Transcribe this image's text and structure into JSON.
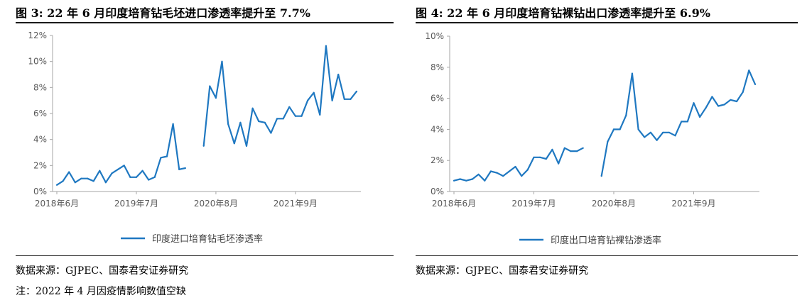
{
  "figures": [
    {
      "title": "图 3:  22 年 6 月印度培育钻毛坯进口渗透率提升至 7.7%",
      "source": "数据来源：GJPEC、国泰君安证券研究"
    },
    {
      "title": "图 4:  22 年 6 月印度培育钻裸钻出口渗透率提升至 6.9%",
      "source": "数据来源：GJPEC、国泰君安证券研究"
    }
  ],
  "note": "注：2022 年 4 月因疫情影响数值空缺",
  "colors": {
    "series": "#1f78c1",
    "axis": "#a6a6a6",
    "text": "#595959"
  },
  "chart_data": [
    {
      "type": "line",
      "title": "图 3:  22 年 6 月印度培育钻毛坯进口渗透率提升至 7.7%",
      "xlabel": "",
      "ylabel": "",
      "ylim": [
        0,
        12
      ],
      "yticks": [
        "0%",
        "2%",
        "4%",
        "6%",
        "8%",
        "10%",
        "12%"
      ],
      "ytick_values": [
        0,
        2,
        4,
        6,
        8,
        10,
        12
      ],
      "xticks": [
        {
          "label": "2018年6月",
          "index": 0
        },
        {
          "label": "2019年7月",
          "index": 13
        },
        {
          "label": "2020年8月",
          "index": 26
        },
        {
          "label": "2021年9月",
          "index": 39
        }
      ],
      "grid": false,
      "legend_position": "bottom",
      "series": [
        {
          "name": "印度进口培育钻毛坯渗透率",
          "values": [
            0.5,
            0.8,
            1.5,
            0.7,
            1.0,
            1.0,
            0.8,
            1.6,
            0.7,
            1.4,
            1.7,
            2.0,
            1.1,
            1.1,
            1.6,
            0.9,
            1.1,
            2.6,
            2.7,
            5.2,
            1.7,
            1.8,
            null,
            null,
            3.5,
            8.1,
            7.2,
            10.0,
            5.2,
            3.7,
            5.3,
            3.5,
            6.4,
            5.4,
            5.3,
            4.5,
            5.6,
            5.6,
            6.5,
            5.8,
            5.8,
            7.0,
            7.6,
            5.9,
            11.2,
            7.0,
            9.0,
            7.1,
            7.1,
            7.7
          ]
        }
      ]
    },
    {
      "type": "line",
      "title": "图 4:  22 年 6 月印度培育钻裸钻出口渗透率提升至 6.9%",
      "xlabel": "",
      "ylabel": "",
      "ylim": [
        0,
        10
      ],
      "yticks": [
        "0%",
        "2%",
        "4%",
        "6%",
        "8%",
        "10%"
      ],
      "ytick_values": [
        0,
        2,
        4,
        6,
        8,
        10
      ],
      "xticks": [
        {
          "label": "2018年6月",
          "index": 0
        },
        {
          "label": "2019年7月",
          "index": 13
        },
        {
          "label": "2020年8月",
          "index": 26
        },
        {
          "label": "2021年9月",
          "index": 39
        }
      ],
      "grid": false,
      "legend_position": "bottom",
      "series": [
        {
          "name": "印度出口培育钻裸钻渗透率",
          "values": [
            0.7,
            0.8,
            0.7,
            0.8,
            1.1,
            0.7,
            1.3,
            1.2,
            1.0,
            1.3,
            1.6,
            1.0,
            1.4,
            2.2,
            2.2,
            2.1,
            2.7,
            1.8,
            2.8,
            2.6,
            2.6,
            2.8,
            null,
            null,
            1.0,
            3.2,
            4.0,
            4.0,
            4.9,
            7.6,
            4.0,
            3.5,
            3.8,
            3.3,
            3.8,
            3.8,
            3.6,
            4.5,
            4.5,
            5.7,
            4.8,
            5.4,
            6.1,
            5.5,
            5.6,
            5.9,
            5.8,
            6.4,
            7.8,
            6.9
          ]
        }
      ]
    }
  ]
}
